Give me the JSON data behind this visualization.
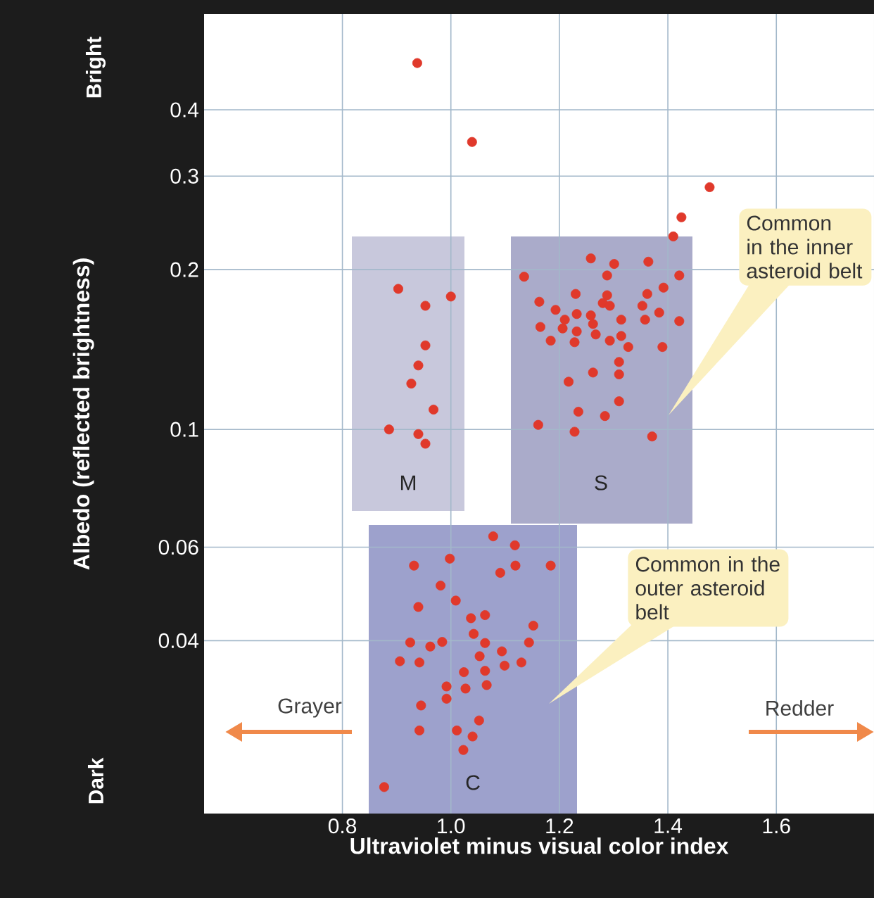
{
  "chart_data": {
    "type": "scatter",
    "xlabel": "Ultraviolet minus visual color index",
    "ylabel": "Albedo (reflected brightness)",
    "series": [
      {
        "color": "#e0392b",
        "x": [
          0.903,
          0.953,
          1.0,
          0.953,
          0.94,
          0.927,
          0.968,
          0.886,
          0.94,
          0.953,
          0.938,
          1.039,
          1.477,
          1.425,
          1.41,
          1.135,
          1.258,
          1.301,
          1.364,
          1.288,
          1.421,
          1.392,
          1.163,
          1.23,
          1.288,
          1.28,
          1.362,
          1.353,
          1.193,
          1.21,
          1.232,
          1.258,
          1.293,
          1.314,
          1.384,
          1.421,
          1.165,
          1.206,
          1.232,
          1.262,
          1.267,
          1.314,
          1.184,
          1.228,
          1.293,
          1.327,
          1.39,
          1.358,
          1.31,
          1.31,
          1.262,
          1.217,
          1.31,
          1.235,
          1.284,
          1.161,
          1.228,
          1.371,
          1.078,
          1.118,
          0.932,
          0.998,
          1.091,
          1.119,
          1.184,
          0.981,
          0.94,
          1.009,
          1.037,
          1.063,
          1.152,
          1.042,
          0.925,
          0.962,
          0.984,
          1.063,
          1.144,
          0.906,
          0.942,
          1.053,
          1.094,
          1.099,
          1.13,
          1.024,
          1.063,
          0.992,
          1.027,
          1.066,
          0.992,
          0.945,
          1.052,
          0.942,
          1.011,
          1.04,
          1.023,
          0.877
        ],
        "values": [
          0.184,
          0.171,
          0.178,
          0.144,
          0.132,
          0.122,
          0.109,
          0.1,
          0.098,
          0.094,
          0.49,
          0.348,
          0.286,
          0.251,
          0.231,
          0.194,
          0.21,
          0.205,
          0.207,
          0.195,
          0.195,
          0.185,
          0.174,
          0.18,
          0.179,
          0.173,
          0.18,
          0.171,
          0.168,
          0.161,
          0.165,
          0.164,
          0.171,
          0.161,
          0.166,
          0.16,
          0.156,
          0.155,
          0.153,
          0.158,
          0.151,
          0.15,
          0.147,
          0.146,
          0.147,
          0.143,
          0.143,
          0.161,
          0.134,
          0.127,
          0.128,
          0.123,
          0.113,
          0.108,
          0.106,
          0.102,
          0.099,
          0.097,
          0.0629,
          0.0605,
          0.0554,
          0.0571,
          0.0537,
          0.0554,
          0.0554,
          0.0508,
          0.0463,
          0.0476,
          0.0441,
          0.0447,
          0.0427,
          0.0412,
          0.0397,
          0.039,
          0.0398,
          0.0396,
          0.0397,
          0.0366,
          0.0364,
          0.0374,
          0.0382,
          0.0359,
          0.0364,
          0.0349,
          0.0351,
          0.0328,
          0.0325,
          0.033,
          0.0311,
          0.0302,
          0.0283,
          0.0271,
          0.0271,
          0.0264,
          0.0249,
          0.0212
        ]
      }
    ],
    "xlim": [
      0.545,
      1.78
    ],
    "ylim": [
      0.0189,
      0.606
    ],
    "xticks": [
      0.8,
      {
        "value": 1,
        "label": "1.0"
      },
      1.2,
      1.4,
      1.6
    ],
    "yticks": [
      0.04,
      0.06,
      0.1,
      0.2,
      0.3,
      0.4
    ],
    "log": "y",
    "grid": true,
    "marker": "circle",
    "annotations": [
      "Bright",
      "Dark",
      "Grayer",
      "Redder",
      "Common in the inner asteroid belt",
      "Common in the outer asteroid belt",
      "M",
      "S",
      "C"
    ]
  }
}
